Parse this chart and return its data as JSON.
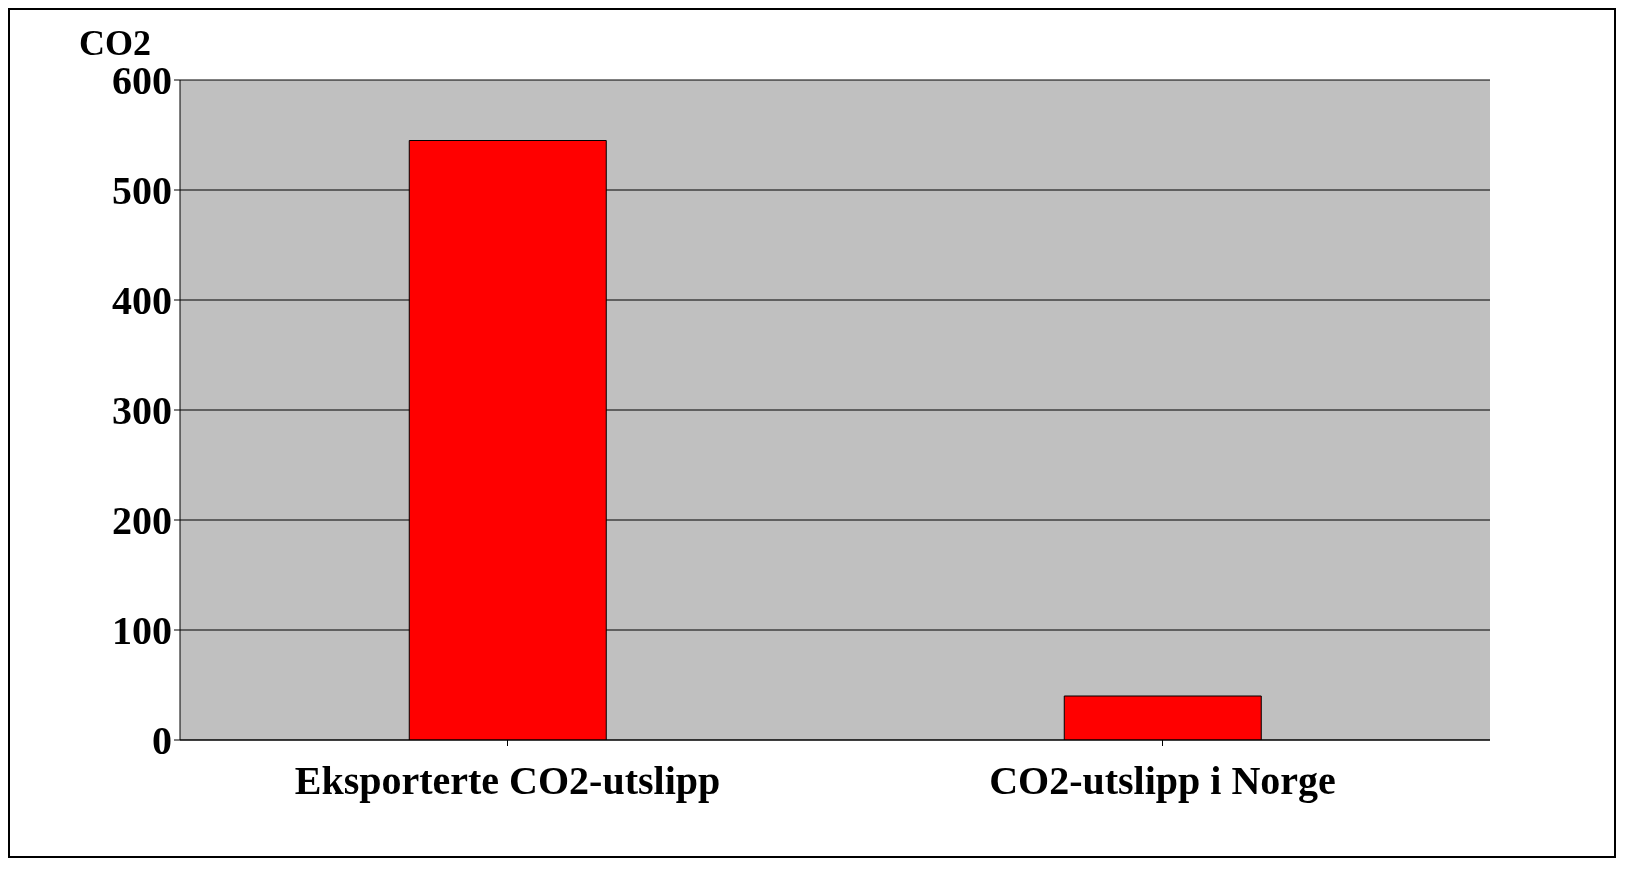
{
  "chart_data": {
    "type": "bar",
    "ylabel": "CO2",
    "categories": [
      "Eksporterte CO2-utslipp",
      "CO2-utslipp i Norge"
    ],
    "values": [
      545,
      40
    ],
    "color": "#ff0000",
    "ylim": [
      0,
      600
    ],
    "yticks": [
      0,
      100,
      200,
      300,
      400,
      500,
      600
    ],
    "grid": "y"
  }
}
